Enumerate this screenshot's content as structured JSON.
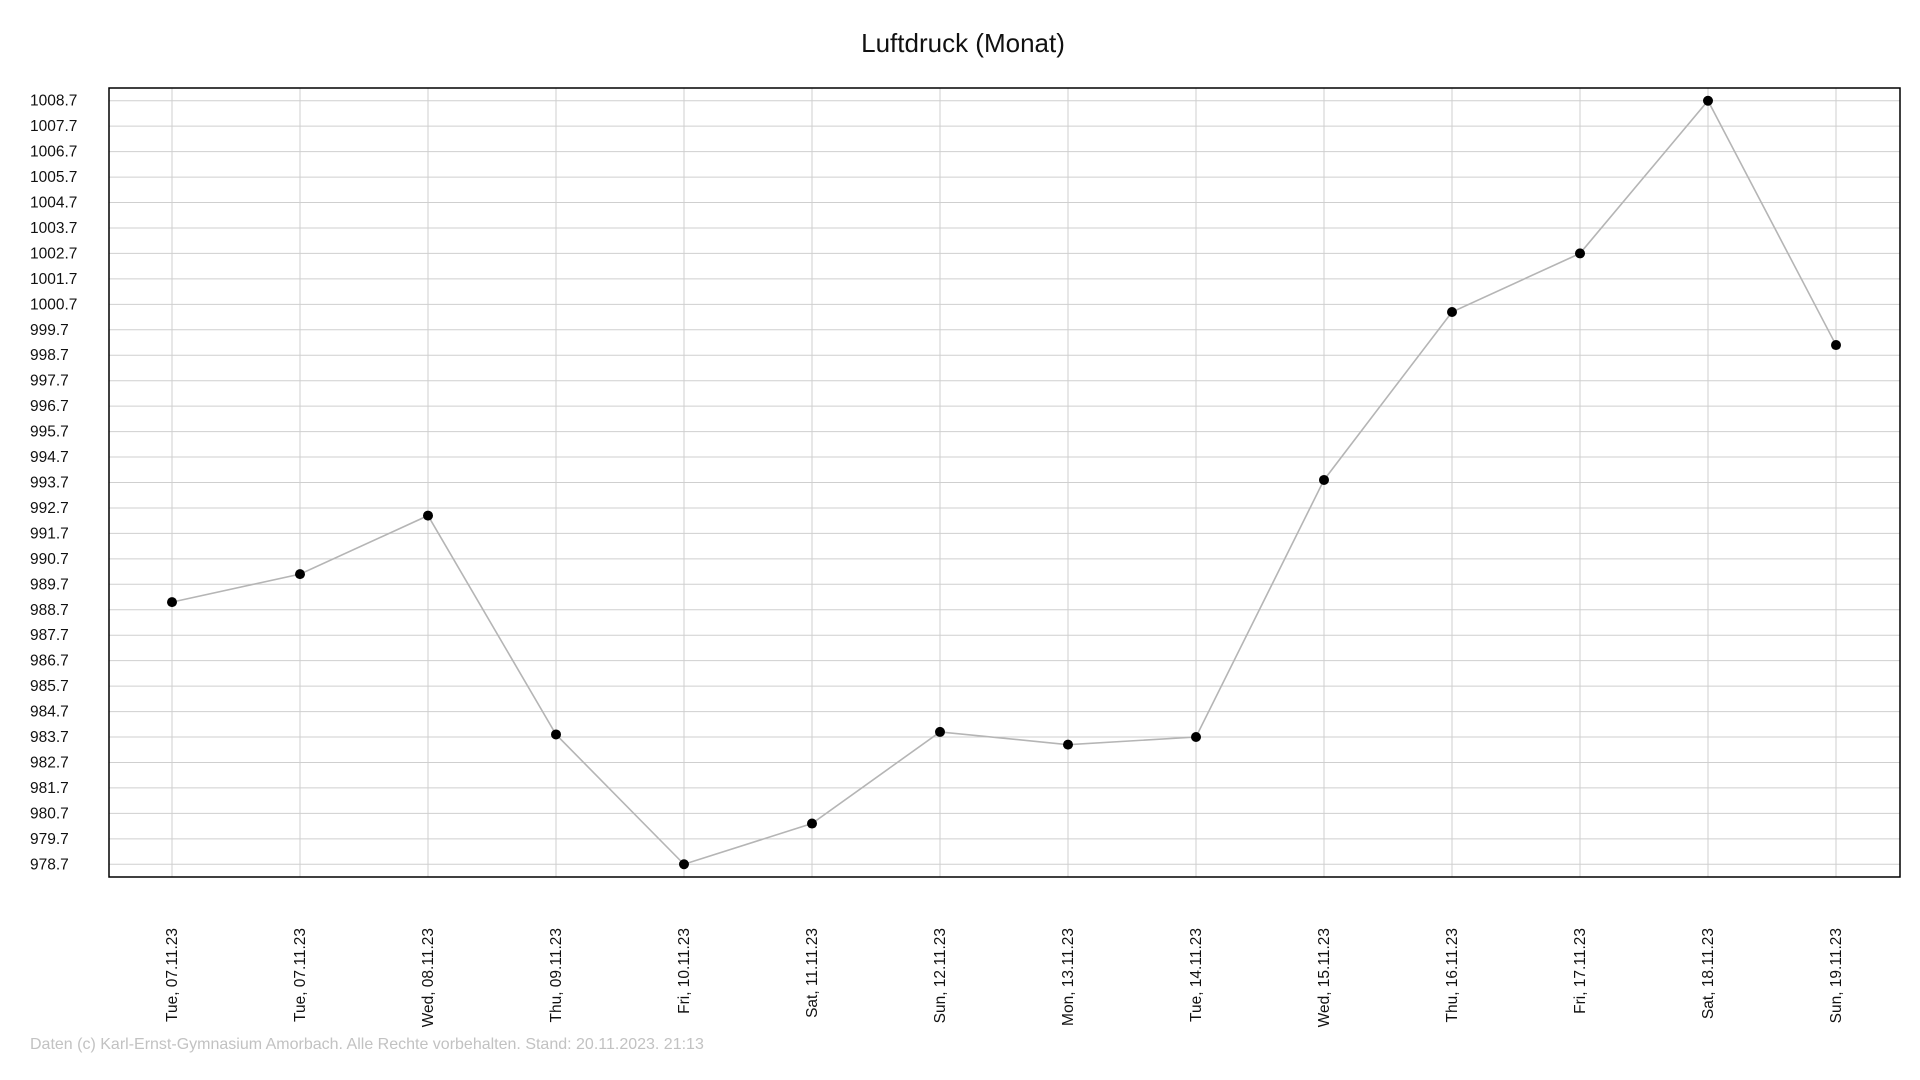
{
  "chart_data": {
    "type": "line",
    "title": "Luftdruck (Monat)",
    "xlabel": "",
    "ylabel": "",
    "categories": [
      "Tue, 07.11.23",
      "Tue, 07.11.23",
      "Wed, 08.11.23",
      "Thu, 09.11.23",
      "Fri, 10.11.23",
      "Sat, 11.11.23",
      "Sun, 12.11.23",
      "Mon, 13.11.23",
      "Tue, 14.11.23",
      "Wed, 15.11.23",
      "Thu, 16.11.23",
      "Fri, 17.11.23",
      "Sat, 18.11.23",
      "Sun, 19.11.23"
    ],
    "values": [
      989.0,
      990.1,
      992.4,
      983.8,
      978.7,
      980.3,
      983.9,
      983.4,
      983.7,
      993.8,
      1000.4,
      1002.7,
      1008.7,
      999.1
    ],
    "y_ticks": [
      "1008.7",
      "1007.7",
      "1006.7",
      "1005.7",
      "1004.7",
      "1003.7",
      "1002.7",
      "1001.7",
      "1000.7",
      "999.7",
      "998.7",
      "997.7",
      "996.7",
      "995.7",
      "994.7",
      "993.7",
      "992.7",
      "991.7",
      "990.7",
      "989.7",
      "988.7",
      "987.7",
      "986.7",
      "985.7",
      "984.7",
      "983.7",
      "982.7",
      "981.7",
      "980.7",
      "979.7",
      "978.7"
    ],
    "ylim": [
      978.2,
      1009.2
    ],
    "grid": true,
    "legend": "none",
    "colors": {
      "line": "#b5b5b5",
      "marker": "#000000",
      "grid": "#cfcfcf",
      "frame": "#000000"
    }
  },
  "footer": "Daten (c) Karl-Ernst-Gymnasium Amorbach. Alle Rechte vorbehalten. Stand: 20.11.2023. 21:13"
}
